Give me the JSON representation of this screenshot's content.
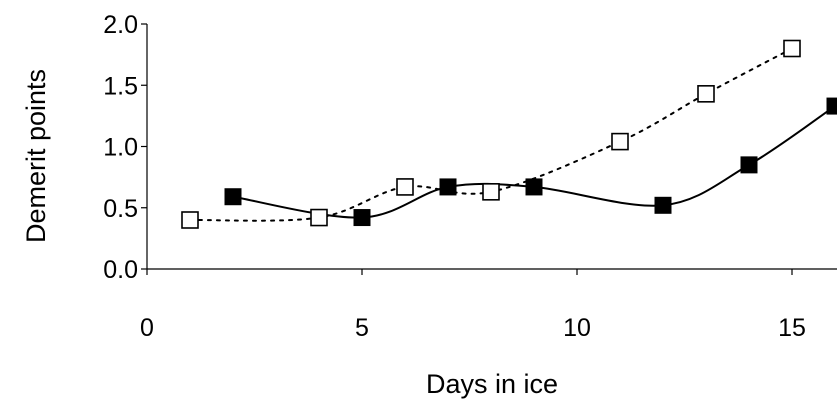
{
  "chart_data": {
    "type": "line",
    "title": "",
    "xlabel": "Days in ice",
    "ylabel": "Demerit points",
    "xlim": [
      0,
      16
    ],
    "ylim": [
      0,
      2.0
    ],
    "x_ticks": [
      0,
      5,
      10,
      15
    ],
    "x_tick_labels": [
      "0",
      "5",
      "10",
      "15"
    ],
    "y_ticks": [
      0,
      0.5,
      1.0,
      1.5,
      2.0
    ],
    "y_tick_labels": [
      "0.0",
      "0.5",
      "1.0",
      "1.5",
      "2.0"
    ],
    "grid": false,
    "legend": "none",
    "series": [
      {
        "marker": "filled-square",
        "line": "solid",
        "color": "#000000",
        "x": [
          2,
          5,
          7,
          9,
          12,
          14,
          16
        ],
        "y": [
          0.59,
          0.42,
          0.67,
          0.67,
          0.52,
          0.85,
          1.33
        ]
      },
      {
        "marker": "open-square",
        "line": "dotted",
        "color": "#000000",
        "x": [
          1,
          4,
          6,
          8,
          11,
          13,
          15
        ],
        "y": [
          0.4,
          0.42,
          0.67,
          0.63,
          1.04,
          1.43,
          1.8
        ]
      }
    ]
  }
}
